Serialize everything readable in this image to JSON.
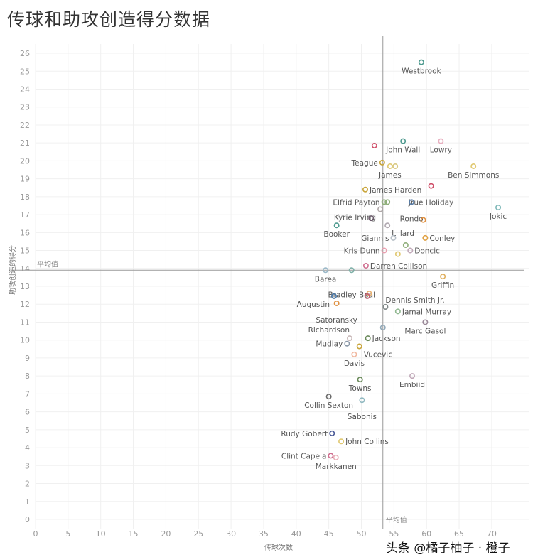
{
  "title": "传球和助攻创造得分数据",
  "watermark": "头条 @橘子柚子 · 橙子",
  "chart_data": {
    "type": "scatter",
    "title": "传球和助攻创造得分数据",
    "xlabel": "传球次数",
    "ylabel": "助攻创造的得分",
    "xlim": [
      0,
      75
    ],
    "ylim": [
      0,
      26.5
    ],
    "xticks": [
      0,
      5,
      10,
      15,
      20,
      25,
      30,
      35,
      40,
      45,
      50,
      55,
      60,
      65,
      70
    ],
    "yticks": [
      0,
      1,
      2,
      3,
      4,
      5,
      6,
      7,
      8,
      9,
      10,
      11,
      12,
      13,
      14,
      15,
      16,
      17,
      18,
      19,
      20,
      21,
      22,
      23,
      24,
      25,
      26
    ],
    "grid": true,
    "reference_lines": {
      "x_mean": 53.3,
      "y_mean": 13.9,
      "label": "平均值"
    },
    "points": [
      {
        "name": "Westbrook",
        "x": 59.2,
        "y": 25.5,
        "color": "#4e9a8f",
        "label_pos": "below"
      },
      {
        "name": "",
        "x": 52.0,
        "y": 20.85,
        "color": "#d0506a"
      },
      {
        "name": "John Wall",
        "x": 56.4,
        "y": 21.1,
        "color": "#4e9a8f",
        "label_pos": "below"
      },
      {
        "name": "Lowry",
        "x": 62.2,
        "y": 21.1,
        "color": "#e8b0c0",
        "label_pos": "below"
      },
      {
        "name": "Teague",
        "x": 53.2,
        "y": 19.9,
        "color": "#c9a53a",
        "label_pos": "left"
      },
      {
        "name": "James",
        "x": 54.4,
        "y": 19.7,
        "color": "#e0c870",
        "label_pos": "below"
      },
      {
        "name": "",
        "x": 55.2,
        "y": 19.7,
        "color": "#d8c880"
      },
      {
        "name": "Ben Simmons",
        "x": 67.2,
        "y": 19.7,
        "color": "#e0c870",
        "label_pos": "below"
      },
      {
        "name": "James Harden",
        "x": 50.6,
        "y": 18.4,
        "color": "#c9a53a",
        "label_pos": "right"
      },
      {
        "name": "Jrue Holiday",
        "x": 60.7,
        "y": 18.6,
        "color": "#d0506a",
        "label_pos": "below"
      },
      {
        "name": "Elfrid Payton",
        "x": 53.5,
        "y": 17.7,
        "color": "#8fae7a",
        "label_pos": "left"
      },
      {
        "name": "",
        "x": 54.0,
        "y": 17.7,
        "color": "#8fae7a"
      },
      {
        "name": "Rondo",
        "x": 57.7,
        "y": 17.7,
        "color": "#5a7ea8",
        "label_pos": "below"
      },
      {
        "name": "Jokic",
        "x": 71.0,
        "y": 17.4,
        "color": "#7fb8b8",
        "label_pos": "below"
      },
      {
        "name": "Kyrie Irving",
        "x": 52.9,
        "y": 17.3,
        "color": "#b0a8a8",
        "label_pos": "left"
      },
      {
        "name": "",
        "x": 51.5,
        "y": 16.8,
        "color": "#6a5a6a"
      },
      {
        "name": "",
        "x": 59.5,
        "y": 16.7,
        "color": "#e09040"
      },
      {
        "name": "Booker",
        "x": 46.2,
        "y": 16.4,
        "color": "#4e9a8f",
        "label_pos": "below"
      },
      {
        "name": "Lillard",
        "x": 54.0,
        "y": 16.4,
        "color": "#b0a8b0",
        "label_pos": "right"
      },
      {
        "name": "Giannis",
        "x": 54.9,
        "y": 15.7,
        "color": "#b8c0c8",
        "label_pos": "left"
      },
      {
        "name": "Conley",
        "x": 59.8,
        "y": 15.7,
        "color": "#e0a040",
        "label_pos": "right"
      },
      {
        "name": "",
        "x": 56.8,
        "y": 15.3,
        "color": "#8fae7a"
      },
      {
        "name": "Kris Dunn",
        "x": 53.5,
        "y": 15.0,
        "color": "#e8a0b0",
        "label_pos": "left"
      },
      {
        "name": "Doncic",
        "x": 57.5,
        "y": 15.0,
        "color": "#c0a8b8",
        "label_pos": "right"
      },
      {
        "name": "",
        "x": 55.6,
        "y": 14.8,
        "color": "#e0c870"
      },
      {
        "name": "Darren Collison",
        "x": 50.7,
        "y": 14.15,
        "color": "#d07090",
        "label_pos": "right"
      },
      {
        "name": "Barea",
        "x": 44.5,
        "y": 13.9,
        "color": "#9ab8c8",
        "label_pos": "below"
      },
      {
        "name": "Bradley Beal",
        "x": 48.5,
        "y": 13.9,
        "color": "#7fb0a8",
        "label_pos": "below"
      },
      {
        "name": "Griffin",
        "x": 62.5,
        "y": 13.55,
        "color": "#e0b060",
        "label_pos": "below"
      },
      {
        "name": "",
        "x": 51.2,
        "y": 12.6,
        "color": "#e8b070"
      },
      {
        "name": "",
        "x": 50.9,
        "y": 12.45,
        "color": "#c06070"
      },
      {
        "name": "Augustin",
        "x": 45.8,
        "y": 12.45,
        "color": "#4a78a8",
        "label_pos": "left"
      },
      {
        "name": "Satoransky",
        "x": 46.2,
        "y": 12.05,
        "color": "#e09040",
        "label_pos": "below"
      },
      {
        "name": "Dennis Smith Jr.",
        "x": 53.7,
        "y": 11.85,
        "color": "#808888",
        "label_pos": "above-right"
      },
      {
        "name": "Jamal Murray",
        "x": 55.6,
        "y": 11.6,
        "color": "#90b890",
        "label_pos": "right"
      },
      {
        "name": "Marc Gasol",
        "x": 59.8,
        "y": 11.0,
        "color": "#9a8898",
        "label_pos": "below"
      },
      {
        "name": "",
        "x": 53.3,
        "y": 10.7,
        "color": "#90a8b8"
      },
      {
        "name": "Richardson",
        "x": 48.2,
        "y": 10.1,
        "color": "#c8b8b8",
        "label_pos": "above-left"
      },
      {
        "name": "Jackson",
        "x": 51.0,
        "y": 10.1,
        "color": "#6a8a5a",
        "label_pos": "right"
      },
      {
        "name": "Mudiay",
        "x": 47.8,
        "y": 9.8,
        "color": "#8a98a8",
        "label_pos": "left"
      },
      {
        "name": "Vucevic",
        "x": 49.7,
        "y": 9.65,
        "color": "#c9a53a",
        "label_pos": "right"
      },
      {
        "name": "Davis",
        "x": 48.9,
        "y": 9.2,
        "color": "#f0b8a0",
        "label_pos": "below"
      },
      {
        "name": "Embiid",
        "x": 57.8,
        "y": 8.0,
        "color": "#c0a8b8",
        "label_pos": "below"
      },
      {
        "name": "Towns",
        "x": 49.8,
        "y": 7.8,
        "color": "#6a8a5a",
        "label_pos": "below"
      },
      {
        "name": "Collin Sexton",
        "x": 45.0,
        "y": 6.85,
        "color": "#6a6a6a",
        "label_pos": "below"
      },
      {
        "name": "Sabonis",
        "x": 50.1,
        "y": 6.65,
        "color": "#90b8c0",
        "label_pos": "below"
      },
      {
        "name": "Rudy Gobert",
        "x": 45.5,
        "y": 4.8,
        "color": "#4a5a98",
        "label_pos": "left"
      },
      {
        "name": "John Collins",
        "x": 46.9,
        "y": 4.35,
        "color": "#e0c870",
        "label_pos": "right"
      },
      {
        "name": "Clint Capela",
        "x": 45.3,
        "y": 3.55,
        "color": "#d07090",
        "label_pos": "left"
      },
      {
        "name": "Markkanen",
        "x": 46.1,
        "y": 3.45,
        "color": "#e8b0b8",
        "label_pos": "below"
      }
    ]
  }
}
